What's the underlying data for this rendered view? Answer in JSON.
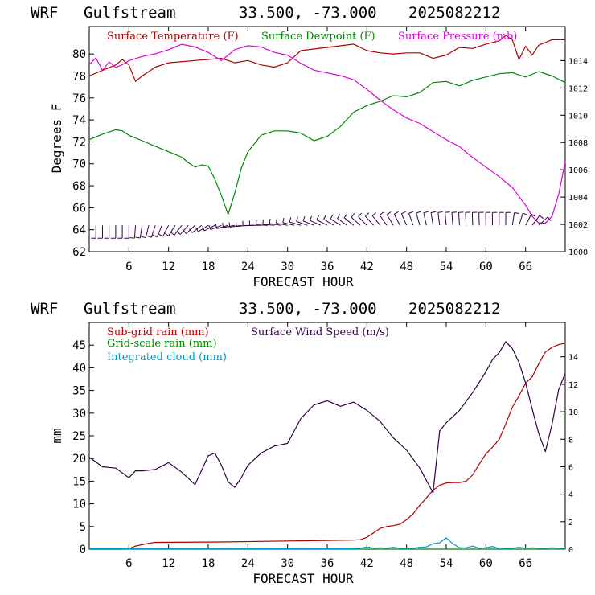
{
  "charts": [
    {
      "header": {
        "model": "WRF",
        "station": "Gulfstream",
        "coords": "33.500, -73.000",
        "run": "2025082212"
      },
      "xlabel": "FORECAST HOUR",
      "ylabel_left": "Degrees F",
      "x_ticks": [
        "6",
        "12",
        "18",
        "24",
        "30",
        "36",
        "42",
        "48",
        "54",
        "60",
        "66"
      ],
      "y_left_ticks": [
        "62",
        "64",
        "66",
        "68",
        "70",
        "72",
        "74",
        "76",
        "78",
        "80"
      ],
      "y_right_ticks": [
        "1000",
        "1002",
        "1004",
        "1006",
        "1008",
        "1010",
        "1012",
        "1014"
      ],
      "legend": [
        "Surface Temperature (F)",
        "Surface Dewpoint (F)",
        "Surface Pressure (mb)"
      ]
    },
    {
      "header": {
        "model": "WRF",
        "station": "Gulfstream",
        "coords": "33.500, -73.000",
        "run": "2025082212"
      },
      "xlabel": "FORECAST HOUR",
      "ylabel_left": "mm",
      "x_ticks": [
        "6",
        "12",
        "18",
        "24",
        "30",
        "36",
        "42",
        "48",
        "54",
        "60",
        "66"
      ],
      "y_left_ticks": [
        "0",
        "5",
        "10",
        "15",
        "20",
        "25",
        "30",
        "35",
        "40",
        "45"
      ],
      "y_right_ticks": [
        "0",
        "2",
        "4",
        "6",
        "8",
        "10",
        "12",
        "14"
      ],
      "legend": [
        "Sub-grid rain (mm)",
        "Surface Wind Speed (m/s)",
        "Grid-scale rain (mm)",
        "Integrated cloud (mm)"
      ]
    }
  ],
  "chart_data": [
    {
      "type": "line",
      "xlim": [
        0,
        72
      ],
      "ylim": [
        62,
        82.5
      ],
      "ylim_right": [
        1000,
        1016.5
      ],
      "series": [
        {
          "name": "Surface Temperature (F)",
          "axis": "left",
          "color": "#b00000",
          "x": [
            0,
            2,
            4,
            5,
            6,
            7,
            8,
            10,
            12,
            16,
            20,
            22,
            24,
            26,
            28,
            30,
            32,
            36,
            40,
            42,
            44,
            46,
            48,
            50,
            52,
            54,
            56,
            58,
            60,
            62,
            63,
            64,
            65,
            66,
            67,
            68,
            70,
            72
          ],
          "y": [
            78,
            78.5,
            79,
            79.5,
            79,
            77.5,
            78,
            78.8,
            79.2,
            79.4,
            79.6,
            79.2,
            79.4,
            79,
            78.8,
            79.2,
            80.3,
            80.6,
            80.9,
            80.3,
            80.1,
            80,
            80.1,
            80.1,
            79.6,
            79.9,
            80.6,
            80.5,
            80.9,
            81.2,
            81.7,
            81.3,
            79.5,
            80.7,
            79.9,
            80.8,
            81.3,
            81.3
          ]
        },
        {
          "name": "Surface Dewpoint (F)",
          "axis": "left",
          "color": "#008800",
          "x": [
            0,
            2,
            4,
            5,
            6,
            8,
            10,
            12,
            14,
            15,
            16,
            17,
            18,
            19,
            20,
            21,
            22,
            23,
            24,
            26,
            28,
            30,
            32,
            34,
            36,
            38,
            40,
            42,
            44,
            46,
            48,
            50,
            52,
            54,
            56,
            58,
            60,
            62,
            64,
            66,
            68,
            70,
            72
          ],
          "y": [
            72.2,
            72.7,
            73.1,
            73,
            72.6,
            72.1,
            71.6,
            71.1,
            70.6,
            70.1,
            69.7,
            69.9,
            69.8,
            68.6,
            67.1,
            65.4,
            67.3,
            69.6,
            71.1,
            72.6,
            73,
            73,
            72.8,
            72.1,
            72.5,
            73.4,
            74.7,
            75.3,
            75.7,
            76.2,
            76.1,
            76.5,
            77.4,
            77.5,
            77.1,
            77.6,
            77.9,
            78.2,
            78.3,
            77.9,
            78.4,
            78,
            77.4
          ]
        },
        {
          "name": "Surface Pressure (mb)",
          "axis": "right",
          "color": "#dd00dd",
          "x": [
            0,
            1,
            2,
            3,
            4,
            5,
            6,
            8,
            10,
            12,
            14,
            16,
            18,
            20,
            22,
            24,
            26,
            28,
            30,
            32,
            34,
            36,
            38,
            40,
            42,
            44,
            46,
            48,
            50,
            52,
            54,
            56,
            58,
            60,
            62,
            64,
            66,
            67,
            68,
            69,
            70,
            71,
            72
          ],
          "y": [
            1013.7,
            1014.2,
            1013.3,
            1013.9,
            1013.5,
            1013.7,
            1014,
            1014.3,
            1014.5,
            1014.8,
            1015.2,
            1015,
            1014.6,
            1014,
            1014.8,
            1015.1,
            1015,
            1014.6,
            1014.4,
            1013.8,
            1013.3,
            1013.1,
            1012.9,
            1012.6,
            1011.9,
            1011.1,
            1010.4,
            1009.8,
            1009.4,
            1008.8,
            1008.2,
            1007.7,
            1006.9,
            1006.2,
            1005.5,
            1004.7,
            1003.4,
            1002.6,
            1002.1,
            1002.1,
            1002.6,
            1004.2,
            1006.6
          ]
        }
      ],
      "barbs": {
        "y": 64.4,
        "x": [
          1,
          2,
          3,
          4,
          5,
          6,
          7,
          8,
          9,
          10,
          11,
          12,
          13,
          14,
          15,
          16,
          17,
          18,
          19,
          20,
          21,
          22,
          23,
          24,
          25,
          26,
          27,
          28,
          29,
          30,
          31,
          32,
          33,
          34,
          35,
          36,
          37,
          38,
          39,
          40,
          41,
          42,
          43,
          44,
          45,
          46,
          47,
          48,
          49,
          50,
          51,
          52,
          53,
          54,
          55,
          56,
          57,
          58,
          59,
          60,
          61,
          62,
          63,
          64,
          65,
          66,
          67,
          68
        ],
        "dir": [
          180,
          180,
          180,
          180,
          180,
          180,
          185,
          190,
          195,
          200,
          205,
          210,
          215,
          220,
          225,
          230,
          235,
          240,
          245,
          250,
          255,
          260,
          262,
          265,
          268,
          270,
          272,
          275,
          278,
          280,
          282,
          285,
          288,
          290,
          292,
          295,
          298,
          300,
          303,
          306,
          309,
          312,
          315,
          318,
          322,
          326,
          330,
          334,
          338,
          342,
          346,
          350,
          352,
          354,
          355,
          356,
          357,
          358,
          358,
          359,
          359,
          0,
          0,
          10,
          20,
          30,
          40,
          50
        ]
      }
    },
    {
      "type": "line",
      "xlim": [
        0,
        72
      ],
      "ylim": [
        0,
        50
      ],
      "ylim_right": [
        0,
        16.5
      ],
      "series": [
        {
          "name": "Sub-grid rain (mm)",
          "axis": "left",
          "color": "#b00000",
          "x": [
            0,
            5,
            6,
            7,
            8,
            9,
            10,
            20,
            30,
            40,
            41,
            42,
            43,
            44,
            45,
            46,
            47,
            48,
            49,
            50,
            51,
            52,
            53,
            54,
            55,
            56,
            57,
            58,
            59,
            60,
            61,
            62,
            63,
            64,
            65,
            66,
            67,
            68,
            69,
            70,
            71,
            72
          ],
          "y": [
            0,
            0,
            0.1,
            0.7,
            1,
            1.3,
            1.5,
            1.6,
            1.8,
            2,
            2.1,
            2.6,
            3.6,
            4.6,
            5,
            5.2,
            5.5,
            6.5,
            7.8,
            9.7,
            11.3,
            13,
            14.1,
            14.6,
            14.7,
            14.7,
            15,
            16.4,
            18.8,
            21,
            22.5,
            24.2,
            27.6,
            31.3,
            33.8,
            36.6,
            38,
            40.9,
            43.5,
            44.5,
            45.1,
            45.4
          ]
        },
        {
          "name": "Surface Wind Speed (m/s)",
          "axis": "right",
          "color": "#330044",
          "x": [
            0,
            2,
            4,
            6,
            7,
            8,
            10,
            12,
            14,
            16,
            18,
            19,
            20,
            21,
            22,
            23,
            24,
            26,
            28,
            30,
            32,
            34,
            36,
            38,
            40,
            42,
            44,
            46,
            48,
            50,
            52,
            53,
            54,
            56,
            58,
            60,
            61,
            62,
            63,
            64,
            65,
            66,
            67,
            68,
            69,
            70,
            71,
            72
          ],
          "y": [
            6.7,
            6,
            5.9,
            5.2,
            5.7,
            5.7,
            5.8,
            6.3,
            5.6,
            4.7,
            6.8,
            7,
            6.1,
            4.9,
            4.5,
            5.2,
            6.1,
            7,
            7.5,
            7.7,
            9.5,
            10.5,
            10.8,
            10.4,
            10.7,
            10.1,
            9.3,
            8.1,
            7.2,
            5.9,
            4.1,
            8.6,
            9.2,
            10.1,
            11.4,
            12.9,
            13.8,
            14.3,
            15.1,
            14.6,
            13.6,
            12.1,
            10.2,
            8.4,
            7.1,
            9.1,
            11.6,
            12.8
          ]
        },
        {
          "name": "Grid-scale rain (mm)",
          "axis": "left",
          "color": "#008800",
          "x": [
            0,
            72
          ],
          "y": [
            0,
            0
          ]
        },
        {
          "name": "Integrated cloud (mm)",
          "axis": "left",
          "color": "#0099cc",
          "x": [
            0,
            40,
            41,
            42,
            43,
            44,
            45,
            46,
            47,
            48,
            49,
            50,
            51,
            52,
            53,
            54,
            55,
            56,
            57,
            58,
            59,
            60,
            61,
            62,
            63,
            64,
            65,
            66,
            67,
            68,
            69,
            70,
            71,
            72
          ],
          "y": [
            0.1,
            0.1,
            0.2,
            0.5,
            0.2,
            0.3,
            0.2,
            0.4,
            0.2,
            0.2,
            0.2,
            0.4,
            0.5,
            1.2,
            1.4,
            2.5,
            1.2,
            0.3,
            0.3,
            0.7,
            0.2,
            0.3,
            0.6,
            0.1,
            0.2,
            0.2,
            0.4,
            0.2,
            0.3,
            0.2,
            0.2,
            0.3,
            0.2,
            0.2
          ]
        }
      ]
    }
  ]
}
